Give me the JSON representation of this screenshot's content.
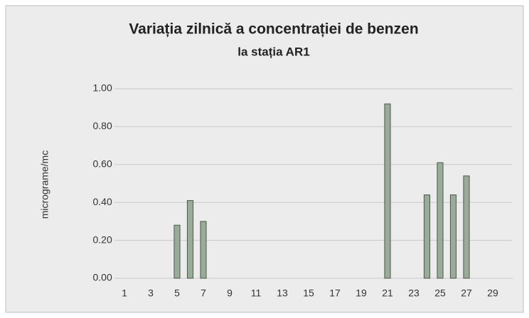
{
  "chart_data": {
    "type": "bar",
    "title": "Variația zilnică a concentrației de benzen",
    "subtitle": "la stația AR1",
    "y_label": "micrograme/mc",
    "categories": [
      "1",
      null,
      "3",
      null,
      "5",
      null,
      "7",
      null,
      "9",
      null,
      "11",
      null,
      "13",
      null,
      "15",
      null,
      "17",
      null,
      "19",
      null,
      "21",
      null,
      "23",
      null,
      "25",
      null,
      "27",
      null,
      "29",
      null
    ],
    "values": [
      0,
      0,
      0,
      0,
      0.28,
      0.41,
      0.3,
      0,
      0,
      0,
      0,
      0,
      0,
      0,
      0,
      0,
      0,
      0,
      0,
      0,
      0.92,
      0,
      0,
      0.44,
      0.61,
      0.44,
      0.54,
      0,
      0,
      0
    ],
    "color": "#9aab9a",
    "ylim": [
      0,
      1
    ],
    "yticks": [
      {
        "value": 0,
        "label": "0.00"
      },
      {
        "value": 0.2,
        "label": "0.20"
      },
      {
        "value": 0.4,
        "label": "0.40"
      },
      {
        "value": 0.6,
        "label": "0.60"
      },
      {
        "value": 0.8,
        "label": "0.80"
      },
      {
        "value": 1,
        "label": "1.00"
      }
    ],
    "grid": true
  }
}
